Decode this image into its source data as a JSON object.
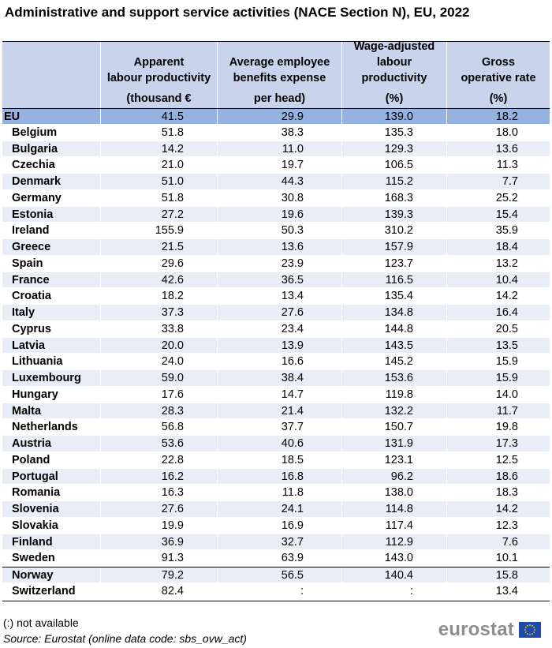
{
  "title": "Administrative and support service activities (NACE Section N), EU, 2022",
  "columns": [
    {
      "label": "Apparent\nlabour productivity",
      "unit": "(thousand €"
    },
    {
      "label": "Average employee\nbenefits expense",
      "unit": "per head)"
    },
    {
      "label": "Wage-adjusted\nlabour\nproductivity",
      "unit": "(%)"
    },
    {
      "label": "Gross\noperative rate",
      "unit": "(%)"
    }
  ],
  "rows": [
    {
      "name": "EU",
      "v": [
        "41.5",
        "29.9",
        "139.0",
        "18.2"
      ]
    },
    {
      "name": "Belgium",
      "v": [
        "51.8",
        "38.3",
        "135.3",
        "18.0"
      ]
    },
    {
      "name": "Bulgaria",
      "v": [
        "14.2",
        "11.0",
        "129.3",
        "13.6"
      ]
    },
    {
      "name": "Czechia",
      "v": [
        "21.0",
        "19.7",
        "106.5",
        "11.3"
      ]
    },
    {
      "name": "Denmark",
      "v": [
        "51.0",
        "44.3",
        "115.2",
        "7.7"
      ]
    },
    {
      "name": "Germany",
      "v": [
        "51.8",
        "30.8",
        "168.3",
        "25.2"
      ]
    },
    {
      "name": "Estonia",
      "v": [
        "27.2",
        "19.6",
        "139.3",
        "15.4"
      ]
    },
    {
      "name": "Ireland",
      "v": [
        "155.9",
        "50.3",
        "310.2",
        "35.9"
      ]
    },
    {
      "name": "Greece",
      "v": [
        "21.5",
        "13.6",
        "157.9",
        "18.4"
      ]
    },
    {
      "name": "Spain",
      "v": [
        "29.6",
        "23.9",
        "123.7",
        "13.2"
      ]
    },
    {
      "name": "France",
      "v": [
        "42.6",
        "36.5",
        "116.5",
        "10.4"
      ]
    },
    {
      "name": "Croatia",
      "v": [
        "18.2",
        "13.4",
        "135.4",
        "14.2"
      ]
    },
    {
      "name": "Italy",
      "v": [
        "37.3",
        "27.6",
        "134.8",
        "16.4"
      ]
    },
    {
      "name": "Cyprus",
      "v": [
        "33.8",
        "23.4",
        "144.8",
        "20.5"
      ]
    },
    {
      "name": "Latvia",
      "v": [
        "20.0",
        "13.9",
        "143.5",
        "13.5"
      ]
    },
    {
      "name": "Lithuania",
      "v": [
        "24.0",
        "16.6",
        "145.2",
        "15.9"
      ]
    },
    {
      "name": "Luxembourg",
      "v": [
        "59.0",
        "38.4",
        "153.6",
        "15.9"
      ]
    },
    {
      "name": "Hungary",
      "v": [
        "17.6",
        "14.7",
        "119.8",
        "14.0"
      ]
    },
    {
      "name": "Malta",
      "v": [
        "28.3",
        "21.4",
        "132.2",
        "11.7"
      ]
    },
    {
      "name": "Netherlands",
      "v": [
        "56.8",
        "37.7",
        "150.7",
        "19.8"
      ]
    },
    {
      "name": "Austria",
      "v": [
        "53.6",
        "40.6",
        "131.9",
        "17.3"
      ]
    },
    {
      "name": "Poland",
      "v": [
        "22.8",
        "18.5",
        "123.1",
        "12.5"
      ]
    },
    {
      "name": "Portugal",
      "v": [
        "16.2",
        "16.8",
        "96.2",
        "18.6"
      ]
    },
    {
      "name": "Romania",
      "v": [
        "16.3",
        "11.8",
        "138.0",
        "18.3"
      ]
    },
    {
      "name": "Slovenia",
      "v": [
        "27.6",
        "24.1",
        "114.8",
        "14.2"
      ]
    },
    {
      "name": "Slovakia",
      "v": [
        "19.9",
        "16.9",
        "117.4",
        "12.3"
      ]
    },
    {
      "name": "Finland",
      "v": [
        "36.9",
        "32.7",
        "112.9",
        "7.6"
      ]
    },
    {
      "name": "Sweden",
      "v": [
        "91.3",
        "63.9",
        "143.0",
        "10.1"
      ]
    },
    {
      "name": "Norway",
      "v": [
        "79.2",
        "56.5",
        "140.4",
        "15.8"
      ]
    },
    {
      "name": "Switzerland",
      "v": [
        "82.4",
        ":",
        ":",
        "13.4"
      ]
    }
  ],
  "footnote": "(:) not available",
  "source": "Source: Eurostat (online data code: sbs_ovw_act)",
  "logo_text": "eurostat",
  "colors": {
    "header_bg": "#c9d4ec",
    "eu_row_bg": "#95b2e0",
    "alt_row_bg": "#e8edf7",
    "flag_blue": "#1f4aa8",
    "flag_star": "#ffdd00"
  }
}
